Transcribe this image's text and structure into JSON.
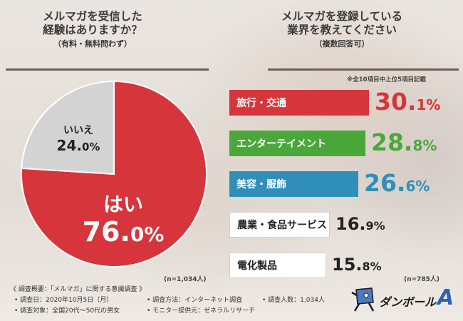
{
  "left_title": {
    "line1": "メルマガを受信した",
    "line2": "経験はありますか？",
    "sub": "（有料・無料問わず）"
  },
  "right_title": {
    "line1": "メルマガを登録している",
    "line2": "業界を教えてください",
    "sub": "（複数回答可）"
  },
  "right_note": "※全10項目中上位5項目記載",
  "chart_data": [
    {
      "type": "pie",
      "slices": [
        {
          "label": "はい",
          "value": 76.0,
          "display_int": "76.",
          "display_dec": "0%",
          "color": "#d6353b"
        },
        {
          "label": "いいえ",
          "value": 24.0,
          "display_int": "24.",
          "display_dec": "0%",
          "color": "#d3d3d3"
        }
      ],
      "n_label": "(n=1,034人)"
    },
    {
      "type": "bar",
      "categories": [
        "旅行・交通",
        "エンターテイメント",
        "美容・服飾",
        "農業・食品サービス",
        "電化製品"
      ],
      "values": [
        30.1,
        28.8,
        26.6,
        16.9,
        15.8
      ],
      "value_int": [
        "30.",
        "28.",
        "26.",
        "16.",
        "15."
      ],
      "value_dec": [
        "1%",
        "8%",
        "6%",
        "9%",
        "8%"
      ],
      "colors": [
        "#d6353b",
        "#4aa83a",
        "#2f8fb9",
        "#ffffff",
        "#ffffff"
      ],
      "label_colors": [
        "#ffffff",
        "#ffffff",
        "#ffffff",
        "#222222",
        "#222222"
      ],
      "value_colors": [
        "#d6353b",
        "#4aa83a",
        "#2f8fb9",
        "#222222",
        "#222222"
      ],
      "n_label": "(n=785人)"
    }
  ],
  "footer": {
    "overview": "《 調査概要：「メルマガ」に関する意識調査 》",
    "date": "• 調査日：2020年10月5日（月）",
    "method": "• 調査方法：インターネット調査",
    "count": "• 調査人数：1,034人",
    "target": "• 調査対象：全国20代〜50代の男女",
    "provider": "• モニター提供元：ゼネラルリサーチ"
  },
  "logo": {
    "text": "ダンボール",
    "mark": "A"
  }
}
